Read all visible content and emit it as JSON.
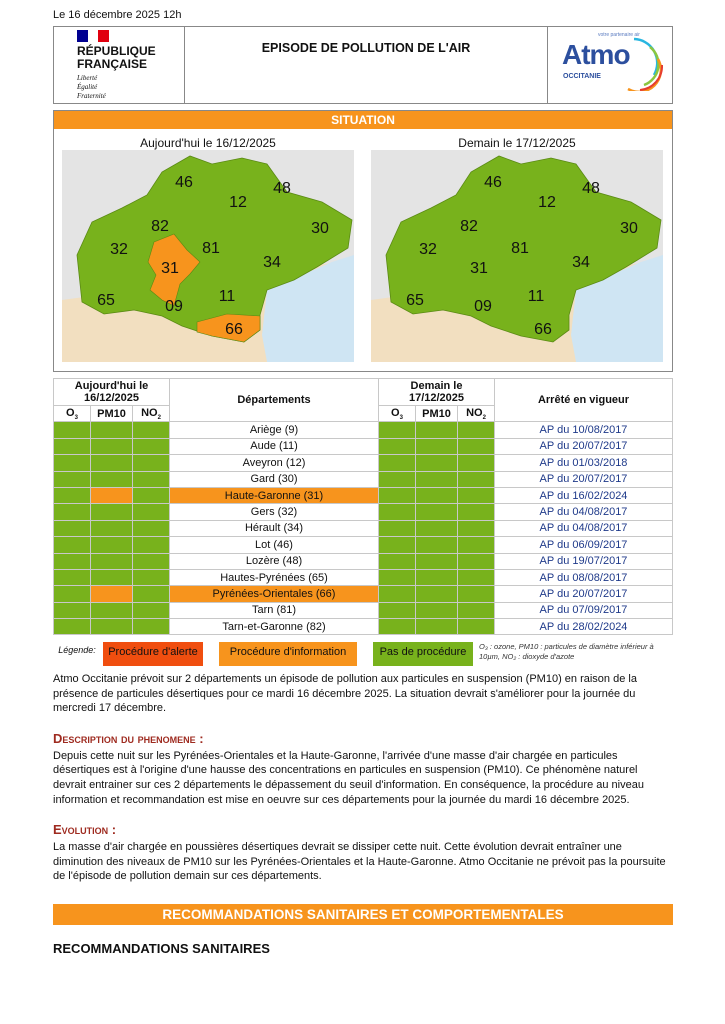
{
  "date": "Le 16 décembre 2025 12h",
  "header": {
    "rf_line1": "RÉPUBLIQUE",
    "rf_line2": "FRANÇAISE",
    "motto": [
      "Liberté",
      "Égalité",
      "Fraternité"
    ],
    "title": "EPISODE DE POLLUTION DE L'AIR",
    "atmo_logo": "Atmo",
    "atmo_tag": "votre partenaire air",
    "atmo_sub": "OCCITANIE"
  },
  "situation": {
    "title": "SITUATION",
    "today_title": "Aujourd'hui le 16/12/2025",
    "tomorrow_title": "Demain le 17/12/2025",
    "today_map": {
      "orange": [
        "31",
        "66"
      ]
    },
    "tomorrow_map": {
      "orange": []
    },
    "labels": [
      "46",
      "48",
      "12",
      "30",
      "82",
      "81",
      "32",
      "34",
      "31",
      "65",
      "09",
      "11",
      "66"
    ]
  },
  "colors": {
    "alerte": "#f04e0f",
    "information": "#f7941d",
    "pas": "#78b21c",
    "sea": "#cfe5f3",
    "land": "#f2dfc0"
  },
  "table": {
    "today_head": "Aujourd'hui le 16/12/2025",
    "tomorrow_head": "Demain le 17/12/2025",
    "dept_head": "Départements",
    "arrete_head": "Arrêté en vigueur",
    "pollutants": [
      "O",
      "PM10",
      "NO"
    ],
    "rows": [
      {
        "dept": "Ariège (9)",
        "today": [
          "g",
          "g",
          "g"
        ],
        "tomorrow": [
          "g",
          "g",
          "g"
        ],
        "ap": "AP du 10/08/2017"
      },
      {
        "dept": "Aude (11)",
        "today": [
          "g",
          "g",
          "g"
        ],
        "tomorrow": [
          "g",
          "g",
          "g"
        ],
        "ap": "AP du 20/07/2017"
      },
      {
        "dept": "Aveyron (12)",
        "today": [
          "g",
          "g",
          "g"
        ],
        "tomorrow": [
          "g",
          "g",
          "g"
        ],
        "ap": "AP du 01/03/2018"
      },
      {
        "dept": "Gard (30)",
        "today": [
          "g",
          "g",
          "g"
        ],
        "tomorrow": [
          "g",
          "g",
          "g"
        ],
        "ap": "AP du 20/07/2017"
      },
      {
        "dept": "Haute-Garonne (31)",
        "today": [
          "g",
          "o",
          "g"
        ],
        "tomorrow": [
          "g",
          "g",
          "g"
        ],
        "ap": "AP du 16/02/2024",
        "hl": true
      },
      {
        "dept": "Gers (32)",
        "today": [
          "g",
          "g",
          "g"
        ],
        "tomorrow": [
          "g",
          "g",
          "g"
        ],
        "ap": "AP du 04/08/2017"
      },
      {
        "dept": "Hérault (34)",
        "today": [
          "g",
          "g",
          "g"
        ],
        "tomorrow": [
          "g",
          "g",
          "g"
        ],
        "ap": "AP du 04/08/2017"
      },
      {
        "dept": "Lot (46)",
        "today": [
          "g",
          "g",
          "g"
        ],
        "tomorrow": [
          "g",
          "g",
          "g"
        ],
        "ap": "AP du 06/09/2017"
      },
      {
        "dept": "Lozère (48)",
        "today": [
          "g",
          "g",
          "g"
        ],
        "tomorrow": [
          "g",
          "g",
          "g"
        ],
        "ap": "AP du 19/07/2017"
      },
      {
        "dept": "Hautes-Pyrénées (65)",
        "today": [
          "g",
          "g",
          "g"
        ],
        "tomorrow": [
          "g",
          "g",
          "g"
        ],
        "ap": "AP du 08/08/2017"
      },
      {
        "dept": "Pyrénées-Orientales (66)",
        "today": [
          "g",
          "o",
          "g"
        ],
        "tomorrow": [
          "g",
          "g",
          "g"
        ],
        "ap": "AP du 20/07/2017",
        "hl": true
      },
      {
        "dept": "Tarn (81)",
        "today": [
          "g",
          "g",
          "g"
        ],
        "tomorrow": [
          "g",
          "g",
          "g"
        ],
        "ap": "AP du 07/09/2017"
      },
      {
        "dept": "Tarn-et-Garonne (82)",
        "today": [
          "g",
          "g",
          "g"
        ],
        "tomorrow": [
          "g",
          "g",
          "g"
        ],
        "ap": "AP du 28/02/2024"
      }
    ]
  },
  "legend": {
    "label": "Légende:",
    "alerte": "Procédure d'alerte",
    "information": "Procédure d'information",
    "pas": "Pas de procédure",
    "note": "O₃ : ozone, PM10 : particules de diamètre inférieur à 10µm, NO₂ : dioxyde d'azote"
  },
  "intro": "Atmo Occitanie prévoit sur 2 départements un épisode de pollution aux particules en suspension (PM10) en raison de la présence de particules désertiques pour ce mardi 16 décembre 2025. La situation devrait s'améliorer pour la journée du mercredi 17 décembre.",
  "description": {
    "title": "Description du phenomene :",
    "text": "Depuis cette nuit sur les Pyrénées-Orientales et la Haute-Garonne, l'arrivée d'une masse d'air chargée en particules désertiques est à l'origine d'une hausse des concentrations en particules en suspension (PM10). Ce phénomène naturel devrait entrainer sur ces 2 départements le dépassement du seuil d'information. En conséquence, la procédure au niveau information et recommandation est mise en oeuvre sur ces départements pour la journée du mardi 16 décembre 2025."
  },
  "evolution": {
    "title": "Evolution :",
    "text": "La masse d'air chargée en poussières désertiques devrait se dissiper cette nuit. Cette évolution devrait entraîner une diminution des niveaux de PM10 sur les Pyrénées-Orientales et la Haute-Garonne. Atmo Occitanie ne prévoit pas la poursuite de l'épisode de pollution demain sur ces départements."
  },
  "reco": {
    "bar": "RECOMMANDATIONS SANITAIRES ET COMPORTEMENTALES",
    "subtitle": "RECOMMANDATIONS SANITAIRES"
  }
}
